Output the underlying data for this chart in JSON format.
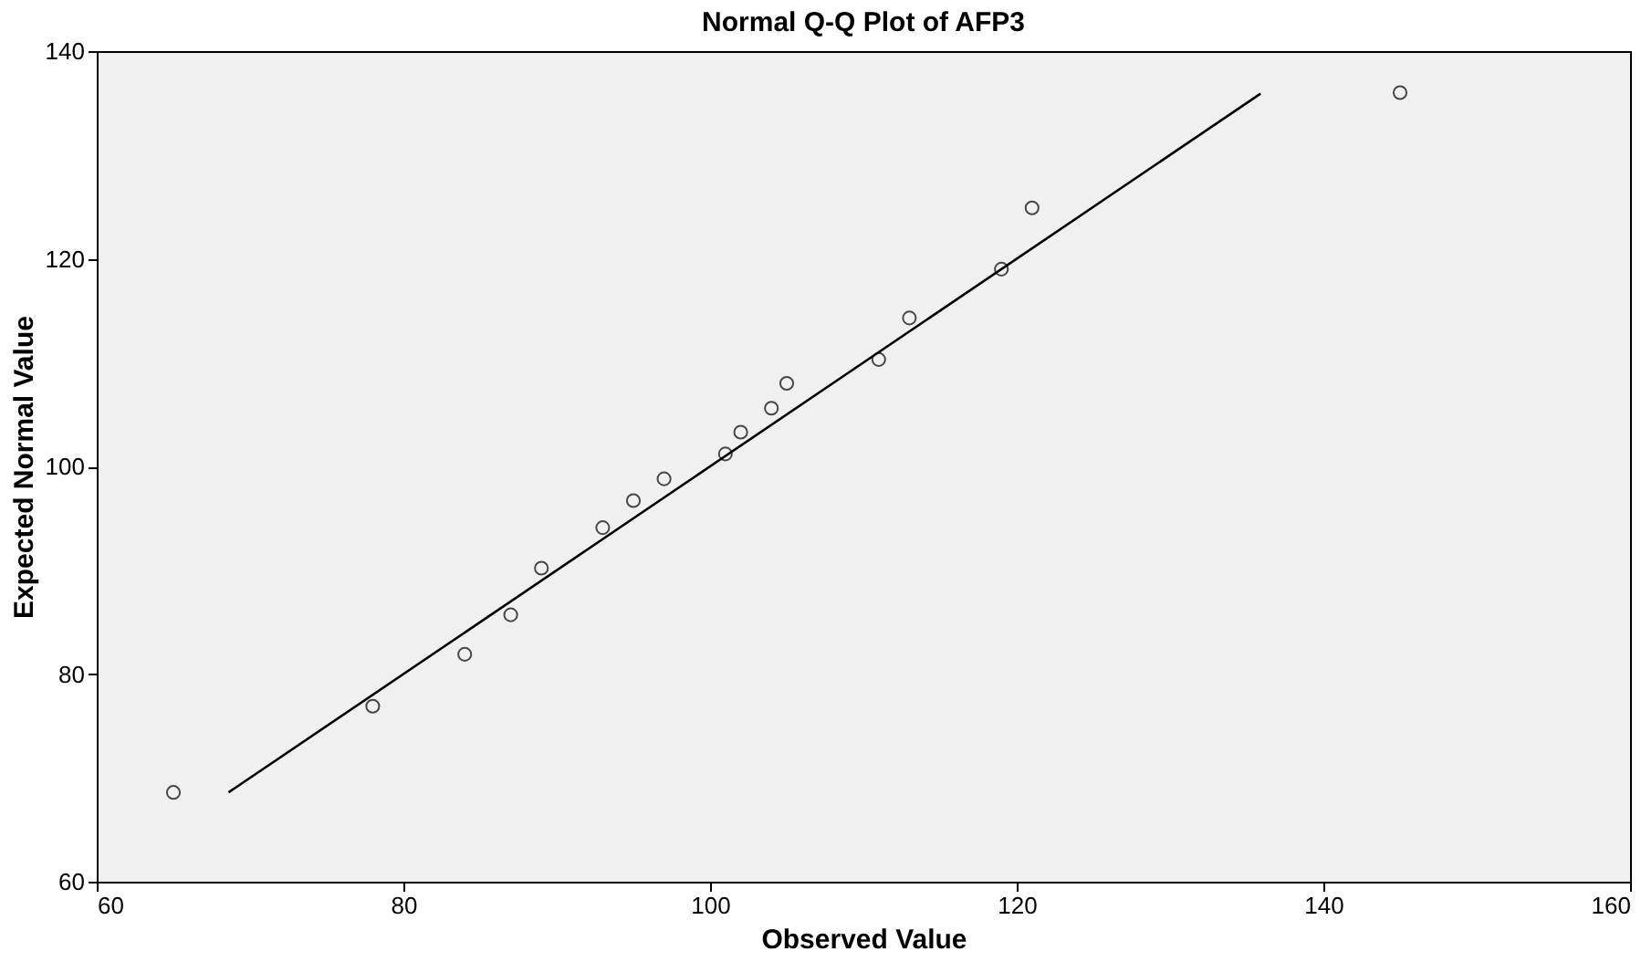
{
  "chart_data": {
    "type": "scatter",
    "title": "Normal Q-Q Plot of AFP3",
    "xlabel": "Observed Value",
    "ylabel": "Expected Normal Value",
    "xlim": [
      60,
      160
    ],
    "ylim": [
      60,
      140
    ],
    "xticks": [
      60,
      80,
      100,
      120,
      140,
      160
    ],
    "yticks": [
      60,
      80,
      100,
      120,
      140
    ],
    "grid": false,
    "series": [
      {
        "type": "scatter",
        "color": "#000000",
        "marker": "circle",
        "x": [
          65,
          78,
          84,
          87,
          89,
          93,
          95,
          97,
          101,
          102,
          104,
          105,
          111,
          113,
          119,
          121,
          145
        ],
        "values": [
          68.6,
          76.9,
          81.9,
          85.7,
          90.2,
          94.1,
          96.7,
          98.8,
          101.2,
          103.3,
          105.6,
          108.0,
          110.3,
          114.3,
          119.0,
          124.9,
          136.0
        ]
      },
      {
        "type": "line",
        "color": "#000000",
        "line_style": "solid",
        "x": [
          68.6,
          135.9
        ],
        "values": [
          68.6,
          135.9
        ]
      }
    ]
  }
}
